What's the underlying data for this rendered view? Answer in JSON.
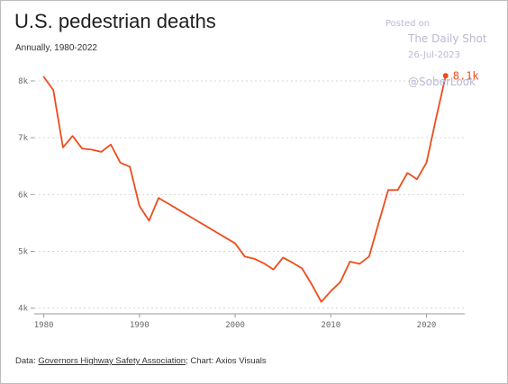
{
  "header": {
    "title": "U.S. pedestrian deaths",
    "subtitle": "Annually, 1980-2022"
  },
  "watermark": {
    "posted": "Posted on",
    "source": "The Daily Shot",
    "date": "26-Jul-2023",
    "handle": "@SoberLook"
  },
  "footer": {
    "prefix": "Data: ",
    "source_link": "Governors Highway Safety Association",
    "suffix": "; Chart: Axios Visuals"
  },
  "chart_data": {
    "type": "line",
    "title": "U.S. pedestrian deaths",
    "subtitle": "Annually, 1980-2022",
    "xlim": [
      1979,
      2024
    ],
    "ylim": [
      3900,
      8300
    ],
    "x_ticks": [
      1980,
      1990,
      2000,
      2010,
      2020
    ],
    "y_ticks": [
      {
        "value": 4000,
        "label": "4k"
      },
      {
        "value": 5000,
        "label": "5k"
      },
      {
        "value": 6000,
        "label": "6k"
      },
      {
        "value": 7000,
        "label": "7k"
      },
      {
        "value": 8000,
        "label": "8k"
      }
    ],
    "grid": "horizontal",
    "color": "#ee4c1b",
    "last_value_label": "8.1k",
    "x": [
      1980,
      1981,
      1982,
      1983,
      1984,
      1985,
      1986,
      1987,
      1988,
      1989,
      1990,
      1991,
      1992,
      1993,
      1994,
      1995,
      1996,
      1997,
      1998,
      1999,
      2000,
      2001,
      2002,
      2003,
      2004,
      2005,
      2006,
      2007,
      2008,
      2009,
      2010,
      2011,
      2012,
      2013,
      2014,
      2015,
      2016,
      2017,
      2018,
      2019,
      2020,
      2021,
      2022
    ],
    "values": [
      8070,
      7840,
      6830,
      7030,
      6810,
      6790,
      6750,
      6880,
      6560,
      6490,
      5800,
      5540,
      5940,
      5840,
      5740,
      5640,
      5540,
      5440,
      5340,
      5240,
      5140,
      4910,
      4870,
      4790,
      4680,
      4890,
      4800,
      4700,
      4420,
      4110,
      4300,
      4460,
      4820,
      4780,
      4910,
      5500,
      6080,
      6080,
      6380,
      6270,
      6560,
      7340,
      8090
    ]
  }
}
